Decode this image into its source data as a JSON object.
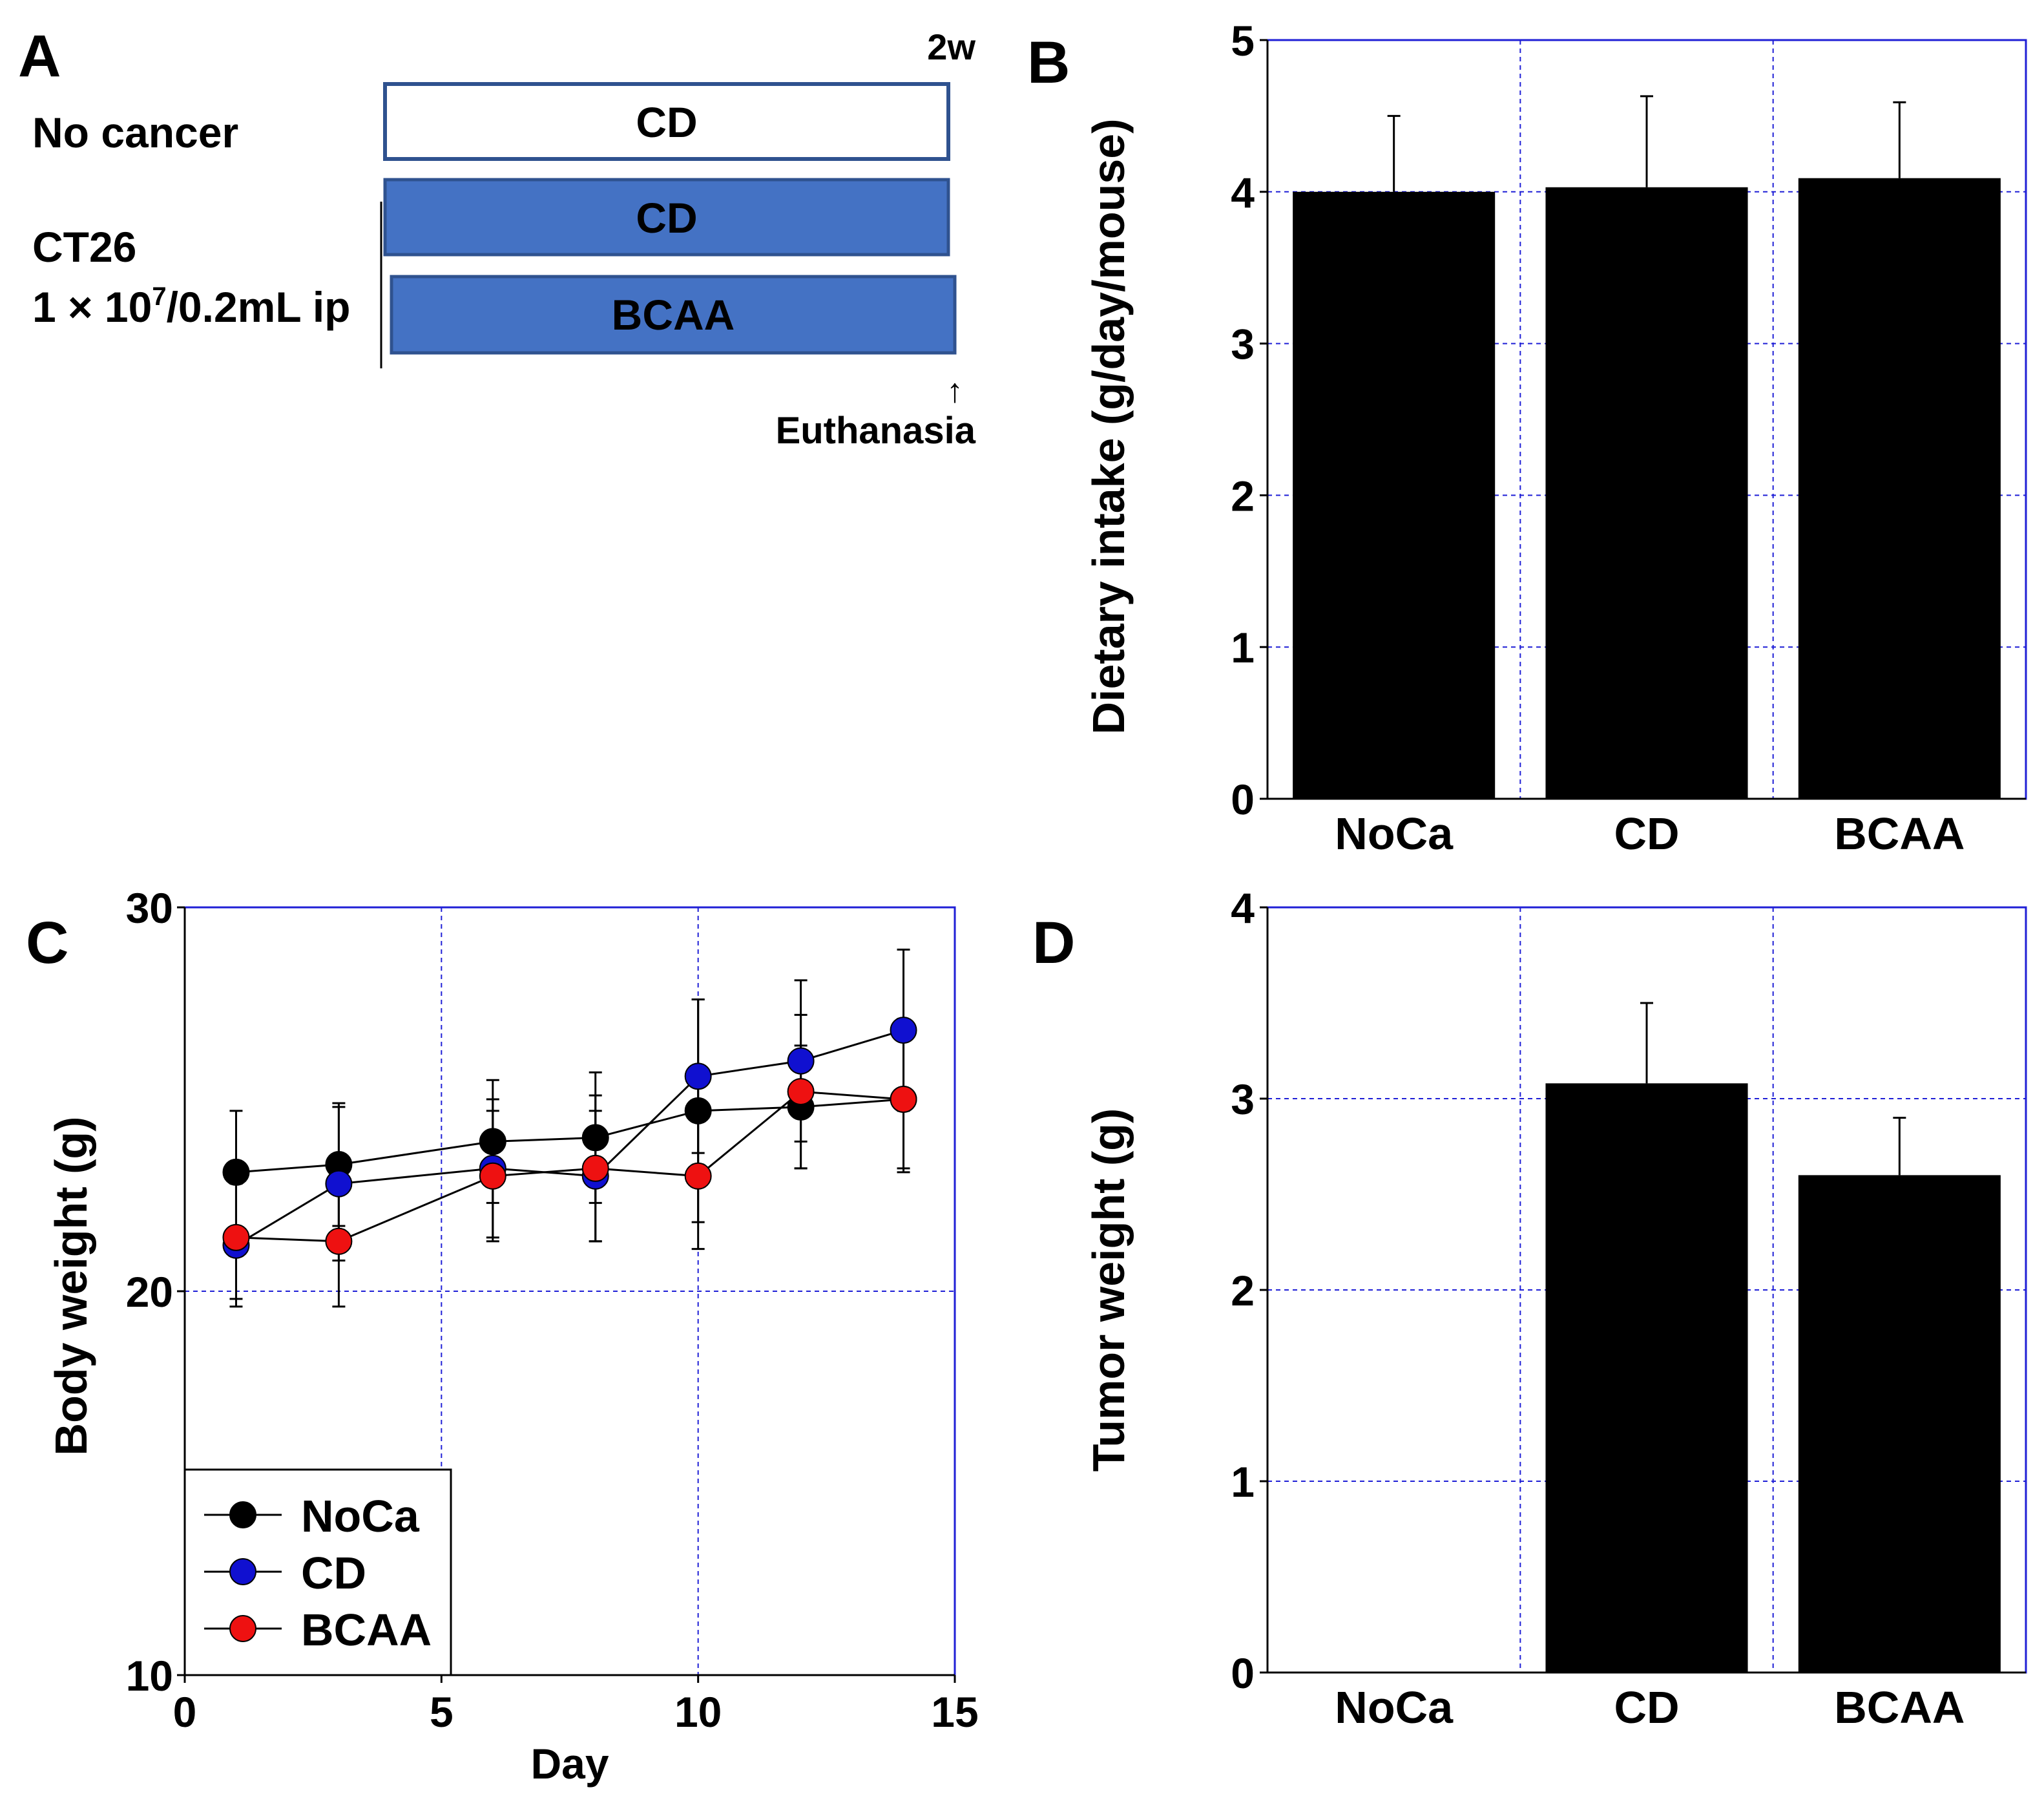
{
  "panels": {
    "a": {
      "letter": "A",
      "duration_label": "2w",
      "no_cancer_label": "No cancer",
      "ct26_label": "CT26",
      "dose_label": {
        "prefix": "1 × 10",
        "sup": "7",
        "suffix": "/0.2mL  ip"
      },
      "boxes": [
        {
          "label": "CD",
          "fill": "#ffffff",
          "stroke": "#2f528f",
          "text_color": "#000000"
        },
        {
          "label": "CD",
          "fill": "#4472c4",
          "stroke": "#2f528f",
          "text_color": "#000000"
        },
        {
          "label": "BCAA",
          "fill": "#4472c4",
          "stroke": "#2f528f",
          "text_color": "#000000"
        }
      ],
      "euthanasia_arrow": "↑",
      "euthanasia_label": "Euthanasia"
    },
    "b": {
      "letter": "B"
    },
    "c": {
      "letter": "C"
    },
    "d": {
      "letter": "D"
    }
  },
  "colors": {
    "grid": "#1f1fd6",
    "bar": "#000000",
    "noca": "#000000",
    "cd": "#1010d0",
    "bcaa": "#ee1111"
  },
  "chart_data": [
    {
      "id": "B",
      "type": "bar",
      "title": "",
      "xlabel": "",
      "ylabel": "Dietary intake (g/day/mouse)",
      "categories": [
        "NoCa",
        "CD",
        "BCAA"
      ],
      "values": [
        4.0,
        4.03,
        4.09
      ],
      "errors": [
        0.5,
        0.6,
        0.5
      ],
      "ylim": [
        0,
        5
      ],
      "yticks": [
        "0",
        "1",
        "2",
        "3",
        "4",
        "5"
      ],
      "grid": true
    },
    {
      "id": "C",
      "type": "line",
      "title": "",
      "xlabel": "Day",
      "ylabel": "Body weight (g)",
      "x": [
        1,
        3,
        6,
        8,
        10,
        12,
        14
      ],
      "xlim": [
        0,
        15
      ],
      "ylim": [
        10,
        30
      ],
      "xticks": [
        "0",
        "5",
        "10",
        "15"
      ],
      "yticks": [
        "10",
        "20",
        "30"
      ],
      "grid": true,
      "legend": "bottom-left",
      "series": [
        {
          "name": "NoCa",
          "values": [
            23.1,
            23.3,
            23.9,
            24.0,
            24.7,
            24.8,
            25.0
          ],
          "errors": [
            1.6,
            1.6,
            1.6,
            1.7,
            2.9,
            1.6,
            1.8
          ]
        },
        {
          "name": "CD",
          "values": [
            21.2,
            22.8,
            23.2,
            23.0,
            25.6,
            26.0,
            26.8
          ],
          "errors": [
            1.6,
            2.0,
            1.8,
            1.7,
            2.0,
            2.1,
            2.1
          ]
        },
        {
          "name": "BCAA",
          "values": [
            21.4,
            21.3,
            23.0,
            23.2,
            23.0,
            25.2,
            25.0
          ],
          "errors": [
            1.6,
            1.7,
            1.7,
            1.9,
            1.9,
            2.0,
            1.9
          ]
        }
      ]
    },
    {
      "id": "D",
      "type": "bar",
      "title": "",
      "xlabel": "",
      "ylabel": "Tumor weight (g)",
      "categories": [
        "NoCa",
        "CD",
        "BCAA"
      ],
      "values": [
        0,
        3.08,
        2.6
      ],
      "errors": [
        0,
        0.42,
        0.3
      ],
      "ylim": [
        0,
        4
      ],
      "yticks": [
        "0",
        "1",
        "2",
        "3",
        "4"
      ],
      "grid": true
    }
  ]
}
